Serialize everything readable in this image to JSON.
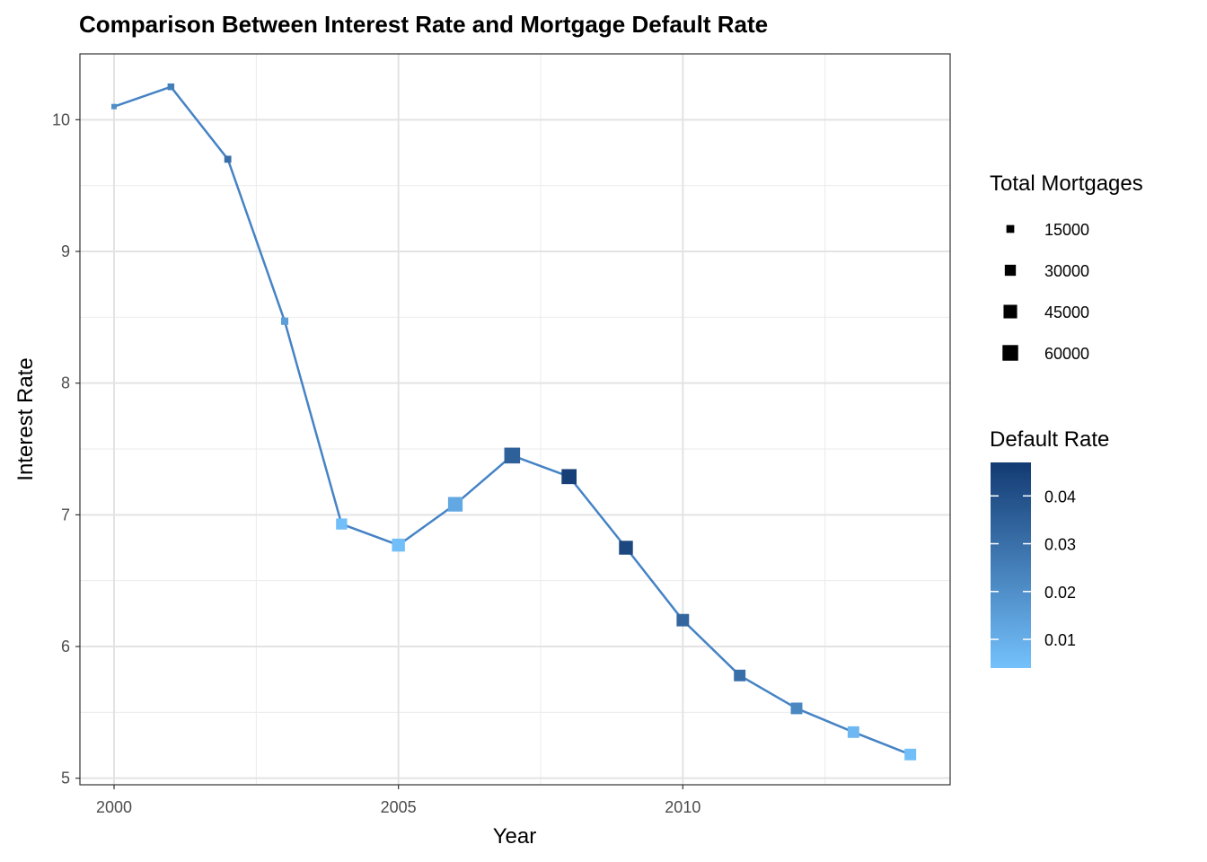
{
  "chart_data": {
    "type": "line",
    "title": "Comparison Between Interest Rate and Mortgage Default Rate",
    "xlabel": "Year",
    "ylabel": "Interest Rate",
    "xlim": [
      1999.4,
      2014.7
    ],
    "ylim": [
      4.95,
      10.5
    ],
    "x_ticks": [
      2000,
      2005,
      2010
    ],
    "y_ticks": [
      5,
      6,
      7,
      8,
      9,
      10
    ],
    "grid": true,
    "line_color": "#4683c5",
    "series": [
      {
        "x": [
          2000,
          2001,
          2002,
          2003,
          2004,
          2005,
          2006,
          2007,
          2008,
          2009,
          2010,
          2011,
          2012,
          2013,
          2014
        ],
        "y": [
          10.1,
          10.25,
          9.7,
          8.47,
          6.93,
          6.77,
          7.08,
          7.45,
          7.29,
          6.75,
          6.2,
          5.78,
          5.53,
          5.35,
          5.18
        ],
        "total_mortgages": [
          7000,
          11000,
          12000,
          13000,
          30000,
          41000,
          52000,
          61000,
          55000,
          47000,
          38000,
          33000,
          33000,
          33000,
          33000
        ],
        "default_rate": [
          0.02,
          0.025,
          0.03,
          0.015,
          0.005,
          0.005,
          0.012,
          0.035,
          0.045,
          0.043,
          0.033,
          0.03,
          0.022,
          0.007,
          0.005
        ]
      }
    ],
    "legends": {
      "size": {
        "title": "Total Mortgages",
        "values": [
          15000,
          30000,
          45000,
          60000
        ],
        "labels": [
          "15000",
          "30000",
          "45000",
          "60000"
        ]
      },
      "color": {
        "title": "Default Rate",
        "range": [
          0.004,
          0.047
        ],
        "ticks": [
          0.01,
          0.02,
          0.03,
          0.04
        ],
        "labels": [
          "0.01",
          "0.02",
          "0.03",
          "0.04"
        ],
        "low_color": "#74c1fc",
        "high_color": "#133a72"
      }
    },
    "legend_placement": "right"
  }
}
